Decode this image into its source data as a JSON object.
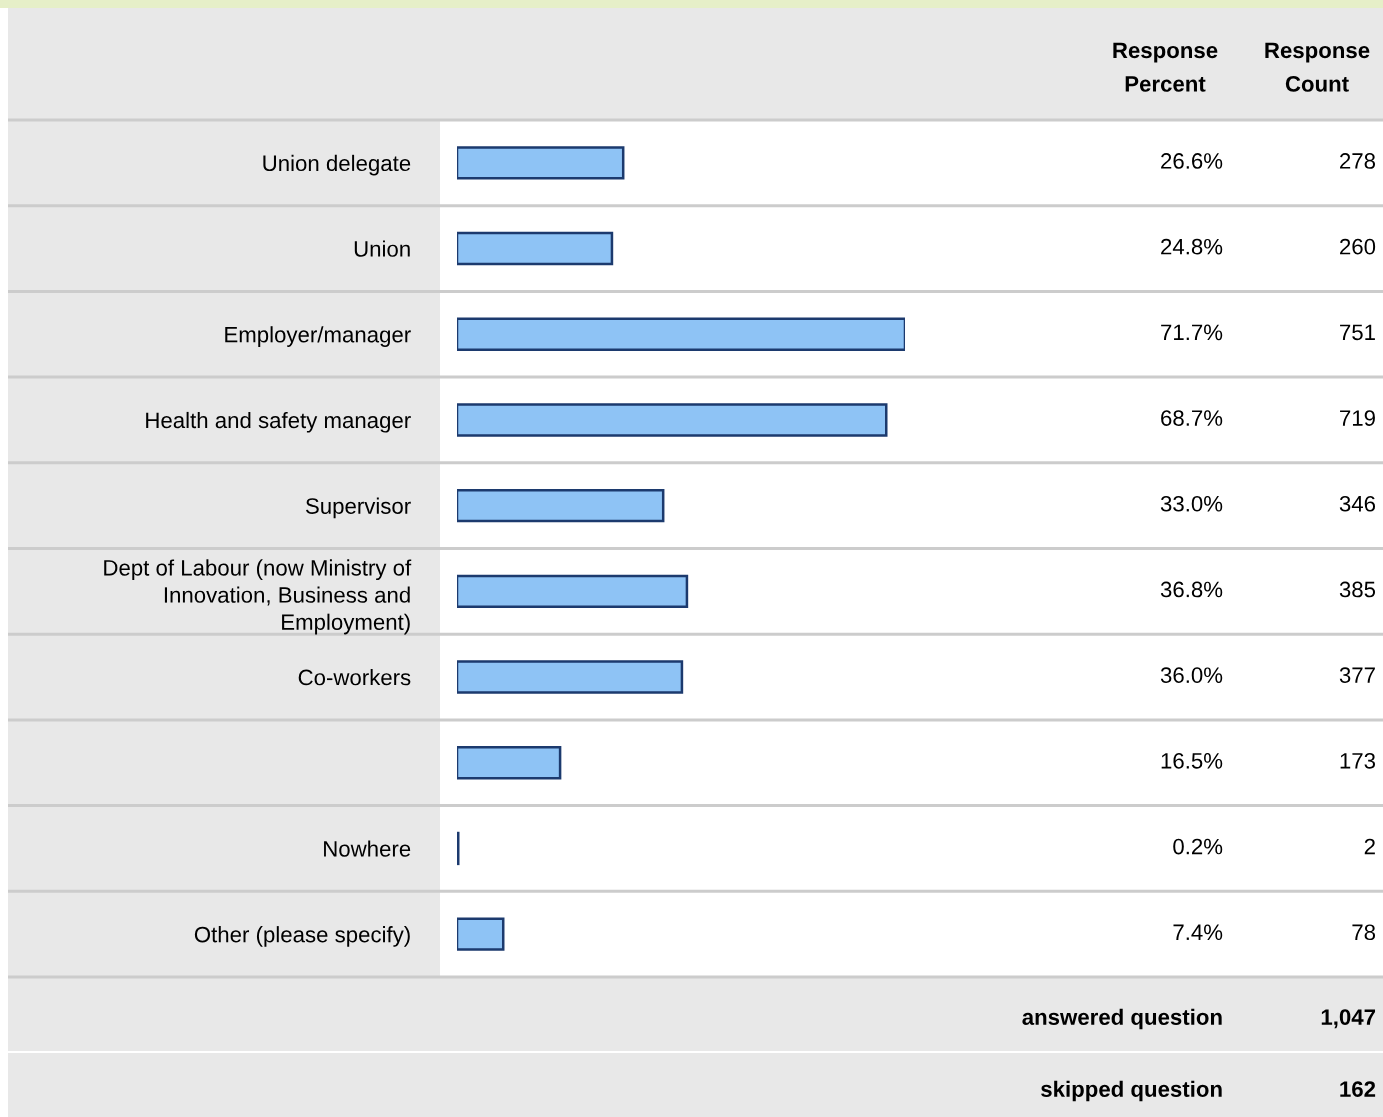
{
  "chart_data": {
    "type": "bar",
    "orientation": "horizontal",
    "categories": [
      "Union delegate",
      "Union",
      "Employer/manager",
      "Health and safety manager",
      "Supervisor",
      "Dept of Labour (now Ministry of Innovation, Business and Employment)",
      "Co-workers",
      null,
      "Nowhere",
      "Other (please specify)"
    ],
    "values": [
      26.6,
      24.8,
      71.7,
      68.7,
      33.0,
      36.8,
      36.0,
      16.5,
      0.2,
      7.4
    ],
    "value_labels": [
      "26.6%",
      "24.8%",
      "71.7%",
      "68.7%",
      "33.0%",
      "36.8%",
      "36.0%",
      "16.5%",
      "0.2%",
      "7.4%"
    ],
    "color": "#8ec3f5",
    "tick_labels": "y",
    "grid": false,
    "legend": false,
    "annotations": [
      "Response Percent",
      "Response Count",
      "278",
      "260",
      "751",
      "719",
      "346",
      "385",
      "377",
      "173",
      "2",
      "78",
      "answered question",
      "1,047",
      "skipped question",
      "162"
    ]
  }
}
